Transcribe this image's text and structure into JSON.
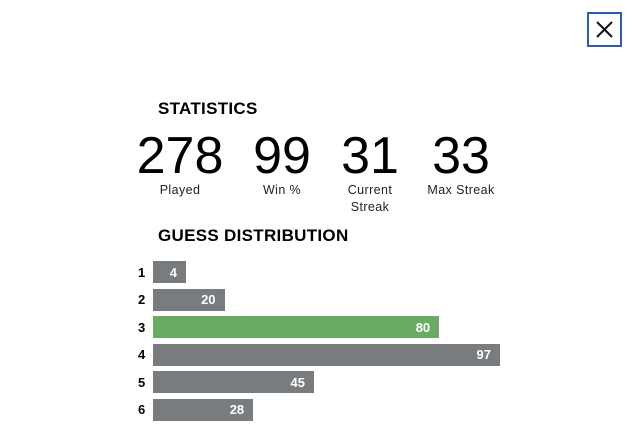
{
  "title": "STATISTICS",
  "stats": [
    {
      "value": 278,
      "label": "Played"
    },
    {
      "value": 99,
      "label": "Win %"
    },
    {
      "value": 31,
      "label": "Current Streak"
    },
    {
      "value": 33,
      "label": "Max Streak"
    }
  ],
  "distribution": {
    "title": "GUESS DISTRIBUTION",
    "rows": [
      {
        "guess": 1,
        "count": 4,
        "color": "#787c7e"
      },
      {
        "guess": 2,
        "count": 20,
        "color": "#787c7e"
      },
      {
        "guess": 3,
        "count": 80,
        "color": "#6aaa64"
      },
      {
        "guess": 4,
        "count": 97,
        "color": "#787c7e"
      },
      {
        "guess": 5,
        "count": 45,
        "color": "#787c7e"
      },
      {
        "guess": 6,
        "count": 28,
        "color": "#787c7e"
      }
    ]
  }
}
